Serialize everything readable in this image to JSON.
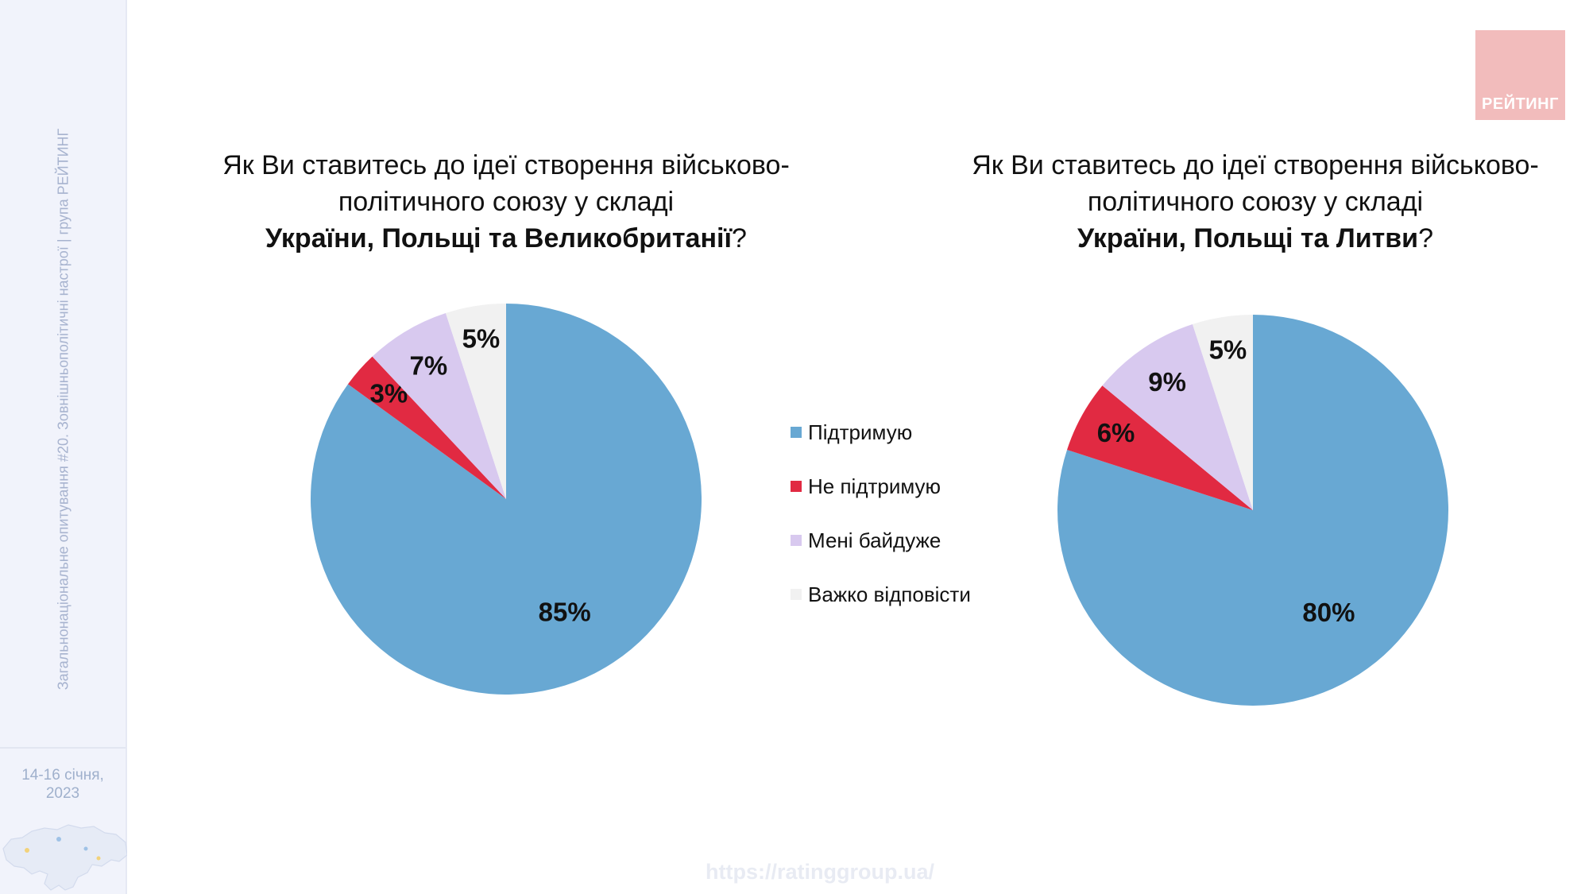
{
  "sidebar": {
    "vertical_text": "Загальнонаціональне опитування #20. Зовнішньополітичні настрої | група РЕЙТИНГ",
    "date_line1": "14-16 січня,",
    "date_line2": "2023"
  },
  "logo": {
    "text": "РЕЙТИНГ"
  },
  "footer": {
    "url": "https://ratinggroup.ua/"
  },
  "colors": {
    "support": "#68a8d3",
    "not_support": "#e12a42",
    "indifferent": "#d8c9ef",
    "hard_to_say": "#f1f1f1",
    "logo_bg": "#f2bcbc",
    "sidebar_bg": "#f1f3fb"
  },
  "legend": [
    {
      "label": "Підтримую",
      "color": "#68a8d3"
    },
    {
      "label": "Не підтримую",
      "color": "#e12a42"
    },
    {
      "label": "Мені байдуже",
      "color": "#d8c9ef"
    },
    {
      "label": "Важко відповісти",
      "color": "#f1f1f1"
    }
  ],
  "chart_data": [
    {
      "type": "pie",
      "title_line1": "Як Ви ставитесь до ідеї створення військово-",
      "title_line2": "політичного союзу у складі",
      "title_bold": "України, Польщі та Великобританії",
      "title_end": "?",
      "categories": [
        "Підтримую",
        "Не підтримую",
        "Мені байдуже",
        "Важко відповісти"
      ],
      "values": [
        85,
        3,
        7,
        5
      ],
      "labels": [
        "85%",
        "3%",
        "7%",
        "5%"
      ]
    },
    {
      "type": "pie",
      "title_line1": "Як Ви ставитесь до ідеї створення військово-",
      "title_line2": "політичного союзу у складі",
      "title_bold": "України, Польщі та Литви",
      "title_end": "?",
      "categories": [
        "Підтримую",
        "Не підтримую",
        "Мені байдуже",
        "Важко відповісти"
      ],
      "values": [
        80,
        6,
        9,
        5
      ],
      "labels": [
        "80%",
        "6%",
        "9%",
        "5%"
      ]
    }
  ]
}
